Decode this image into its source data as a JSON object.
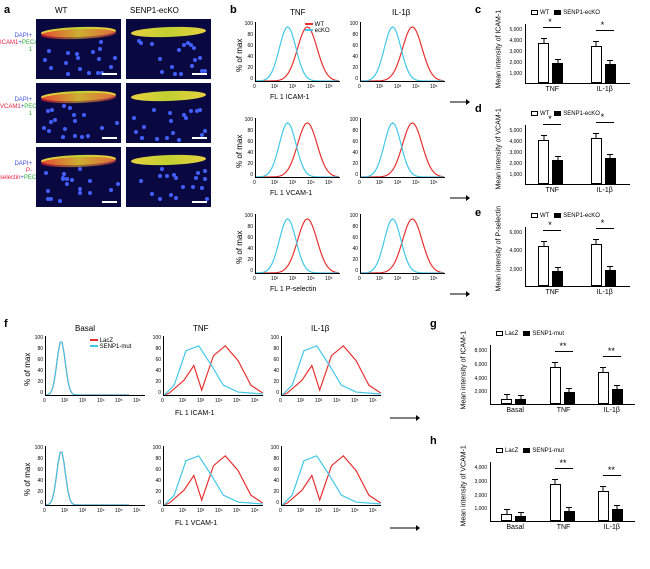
{
  "labels": {
    "a": "a",
    "b": "b",
    "c": "c",
    "d": "d",
    "e": "e",
    "f": "f",
    "g": "g",
    "h": "h"
  },
  "panel_a": {
    "col1": "WT",
    "col2": "SENP1-ecKO",
    "rows": [
      {
        "dapi": "DAPI",
        "marker": "ICAM1",
        "pecam": "PECAM-1"
      },
      {
        "dapi": "DAPI",
        "marker": "VCAM1",
        "pecam": "PECAM-1"
      },
      {
        "dapi": "DAPI",
        "marker": "P-selectin",
        "pecam": "PECAM1"
      }
    ]
  },
  "panel_b": {
    "col1": "TNF",
    "col2": "IL-1β",
    "yaxis": "% of max",
    "legend1": "WT",
    "legend2": "ecKO",
    "xlabels": [
      "FL 1 ICAM-1",
      "FL 1 VCAM-1",
      "FL 1 P-selectin"
    ],
    "color_wt": "#e83030",
    "color_ecko": "#40c8e8",
    "y_ticks": [
      "0",
      "20",
      "40",
      "60",
      "80",
      "100"
    ],
    "x_ticks": [
      "0",
      "10²",
      "10³",
      "10⁴",
      "10⁵"
    ]
  },
  "bar_charts": {
    "c": {
      "ylabel": "Mean intensity of ICAM-1",
      "ymax": 5000,
      "ytick_step": 1000,
      "ticks": [
        "1,000",
        "2,000",
        "3,000",
        "4,000",
        "5,000"
      ],
      "groups": [
        "TNF",
        "IL-1β"
      ],
      "legend": [
        "WT",
        "SENP1-ecKO"
      ],
      "data": [
        {
          "wt": 3600,
          "ko": 1800,
          "sig": "*"
        },
        {
          "wt": 3400,
          "ko": 1700,
          "sig": "*"
        }
      ]
    },
    "d": {
      "ylabel": "Mean intensity of VCAM-1",
      "ymax": 5000,
      "ticks": [
        "1,000",
        "2,000",
        "3,000",
        "4,000",
        "5,000"
      ],
      "groups": [
        "TNF",
        "IL-1β"
      ],
      "legend": [
        "WT",
        "SENP1-ecKO"
      ],
      "data": [
        {
          "wt": 4000,
          "ko": 2200,
          "sig": "*"
        },
        {
          "wt": 4200,
          "ko": 2400,
          "sig": "*"
        }
      ]
    },
    "e": {
      "ylabel": "Mean intensity of P-selectin",
      "ymax": 6000,
      "ticks": [
        "2,000",
        "4,000",
        "6,000"
      ],
      "groups": [
        "TNF",
        "IL-1β"
      ],
      "legend": [
        "WT",
        "SENP1-ecKO"
      ],
      "data": [
        {
          "wt": 4400,
          "ko": 1600,
          "sig": "*"
        },
        {
          "wt": 4600,
          "ko": 1700,
          "sig": "*"
        }
      ]
    },
    "g": {
      "ylabel": "Mean intensity of ICAM-1",
      "ymax": 8000,
      "ticks": [
        "2,000",
        "4,000",
        "6,000",
        "8,000"
      ],
      "groups": [
        "Basal",
        "TNF",
        "IL-1β"
      ],
      "legend": [
        "LacZ",
        "SENP1-mut"
      ],
      "data": [
        {
          "wt": 800,
          "ko": 700,
          "sig": ""
        },
        {
          "wt": 5400,
          "ko": 1700,
          "sig": "**"
        },
        {
          "wt": 4600,
          "ko": 2200,
          "sig": "**"
        }
      ]
    },
    "h": {
      "ylabel": "Mean intensity of VCAM-1",
      "ymax": 4000,
      "ticks": [
        "1,000",
        "2,000",
        "3,000",
        "4,000"
      ],
      "groups": [
        "Basal",
        "TNF",
        "IL-1β"
      ],
      "legend": [
        "LacZ",
        "SENP1-mut"
      ],
      "data": [
        {
          "wt": 500,
          "ko": 400,
          "sig": ""
        },
        {
          "wt": 2700,
          "ko": 700,
          "sig": "**"
        },
        {
          "wt": 2200,
          "ko": 900,
          "sig": "**"
        }
      ]
    }
  },
  "panel_f": {
    "cols": [
      "Basal",
      "TNF",
      "IL-1β"
    ],
    "yaxis": "% of max",
    "legend1": "LacZ",
    "legend2": "SENP1-mut",
    "xlabels": [
      "FL 1 ICAM-1",
      "FL 1 VCAM-1"
    ],
    "color_lacz": "#e83030",
    "color_mut": "#40c8e8",
    "y_ticks": [
      "0",
      "20",
      "40",
      "60",
      "80",
      "100"
    ],
    "x_ticks": [
      "0",
      "10²",
      "10³",
      "10⁴",
      "10⁵",
      "10⁶"
    ]
  }
}
